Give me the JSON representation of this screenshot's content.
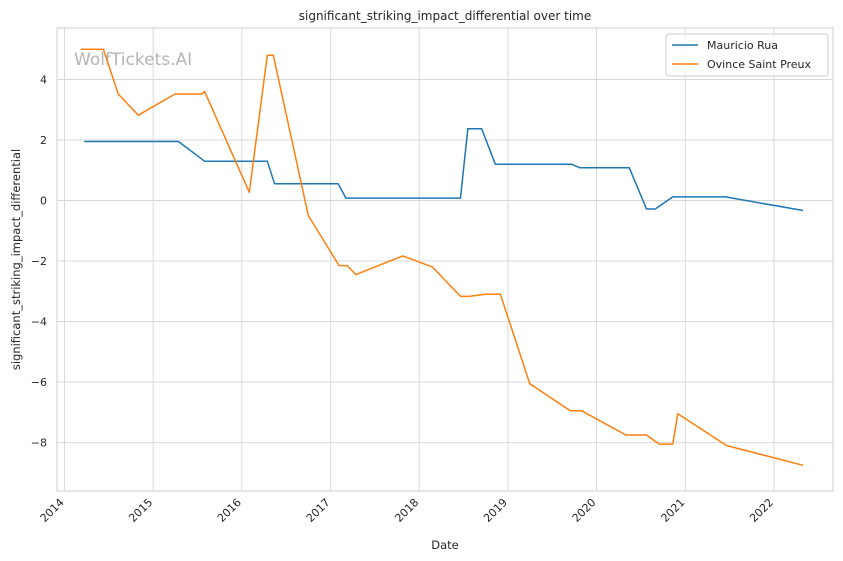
{
  "chart_data": {
    "type": "line",
    "title": "significant_striking_impact_differential over time",
    "xlabel": "Date",
    "ylabel": "significant_striking_impact_differential",
    "watermark": "WolfTickets.AI",
    "xlim": [
      "2013-12-01",
      "2022-09-01"
    ],
    "ylim": [
      -9.6,
      5.7
    ],
    "x_ticks": [
      "2014-01-01",
      "2015-01-01",
      "2016-01-01",
      "2017-01-01",
      "2018-01-01",
      "2019-01-01",
      "2020-01-01",
      "2021-01-01",
      "2022-01-01"
    ],
    "x_tick_labels": [
      "2014",
      "2015",
      "2016",
      "2017",
      "2018",
      "2019",
      "2020",
      "2021",
      "2022"
    ],
    "y_ticks": [
      4,
      2,
      0,
      -2,
      -4,
      -6,
      -8
    ],
    "y_tick_labels": [
      "4",
      "2",
      "0",
      "−2",
      "−4",
      "−6",
      "−8"
    ],
    "grid": true,
    "legend_position": "top-right",
    "series": [
      {
        "name": "Mauricio Rua",
        "color": "#1f77b4",
        "points": [
          [
            "2014-03-23",
            1.95
          ],
          [
            "2015-04-15",
            1.95
          ],
          [
            "2015-08-01",
            1.3
          ],
          [
            "2016-04-15",
            1.3
          ],
          [
            "2016-05-15",
            0.55
          ],
          [
            "2017-02-01",
            0.55
          ],
          [
            "2017-03-05",
            0.08
          ],
          [
            "2018-06-20",
            0.08
          ],
          [
            "2018-07-20",
            2.37
          ],
          [
            "2018-09-15",
            2.37
          ],
          [
            "2018-11-10",
            1.2
          ],
          [
            "2019-09-20",
            1.2
          ],
          [
            "2019-10-25",
            1.08
          ],
          [
            "2020-05-15",
            1.08
          ],
          [
            "2020-07-25",
            -0.28
          ],
          [
            "2020-08-30",
            -0.28
          ],
          [
            "2020-11-10",
            0.12
          ],
          [
            "2021-06-15",
            0.12
          ],
          [
            "2022-05-01",
            -0.33
          ]
        ]
      },
      {
        "name": "Ovince Saint Preux",
        "color": "#ff7f0e",
        "points": [
          [
            "2014-03-10",
            5.0
          ],
          [
            "2014-06-10",
            5.0
          ],
          [
            "2014-08-10",
            3.52
          ],
          [
            "2014-11-01",
            2.82
          ],
          [
            "2015-04-01",
            3.52
          ],
          [
            "2015-07-20",
            3.52
          ],
          [
            "2015-08-01",
            3.6
          ],
          [
            "2016-02-01",
            0.27
          ],
          [
            "2016-04-15",
            4.8
          ],
          [
            "2016-05-10",
            4.8
          ],
          [
            "2016-10-01",
            -0.5
          ],
          [
            "2017-02-05",
            -2.15
          ],
          [
            "2017-03-10",
            -2.15
          ],
          [
            "2017-04-15",
            -2.45
          ],
          [
            "2017-10-25",
            -1.83
          ],
          [
            "2018-02-25",
            -2.2
          ],
          [
            "2018-06-20",
            -3.17
          ],
          [
            "2018-07-25",
            -3.17
          ],
          [
            "2018-10-01",
            -3.1
          ],
          [
            "2018-12-01",
            -3.1
          ],
          [
            "2019-04-01",
            -6.05
          ],
          [
            "2019-09-15",
            -6.95
          ],
          [
            "2019-11-01",
            -6.95
          ],
          [
            "2020-05-01",
            -7.75
          ],
          [
            "2020-07-25",
            -7.75
          ],
          [
            "2020-09-15",
            -8.05
          ],
          [
            "2020-11-10",
            -8.05
          ],
          [
            "2020-12-01",
            -7.05
          ],
          [
            "2021-06-20",
            -8.1
          ],
          [
            "2022-05-01",
            -8.75
          ]
        ]
      }
    ]
  }
}
